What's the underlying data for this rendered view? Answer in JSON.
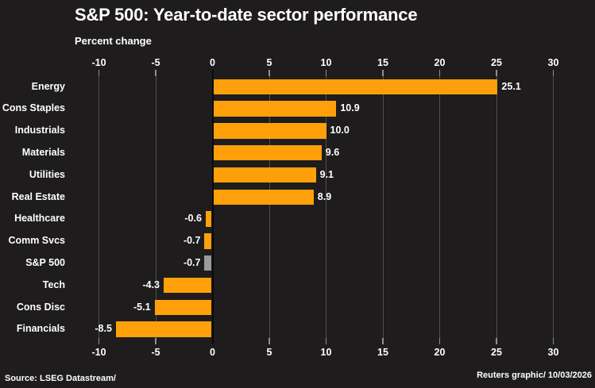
{
  "header": {
    "title": "S&P 500: Year-to-date sector performance",
    "subtitle": "Percent change"
  },
  "footer": {
    "source": "Source: LSEG Datastream/",
    "credit": "Reuters graphic/ 10/03/2026"
  },
  "colors": {
    "background": "#1e1c1c",
    "text": "#ffffff",
    "bar": "#ffa00a",
    "bar_highlight": "#9b9b9b",
    "gridline": "#4f4f4f",
    "tick": "#909090",
    "zero_line": "#0a0a0a"
  },
  "chart_data": {
    "type": "bar",
    "orientation": "horizontal",
    "title": "S&P 500: Year-to-date sector performance",
    "ylabel": "",
    "xlabel": "Percent change",
    "categories": [
      "Energy",
      "Cons Staples",
      "Industrials",
      "Materials",
      "Utilities",
      "Real Estate",
      "Healthcare",
      "Comm Svcs",
      "S&P 500",
      "Tech",
      "Cons Disc",
      "Financials"
    ],
    "values": [
      25.1,
      10.9,
      10.0,
      9.6,
      9.1,
      8.9,
      -0.6,
      -0.7,
      -0.7,
      -4.3,
      -5.1,
      -8.5
    ],
    "highlight_category": "S&P 500",
    "highlight_index": 8,
    "xticks": [
      -10,
      -5,
      0,
      5,
      10,
      15,
      20,
      25,
      30
    ],
    "xlim": [
      -10,
      33.5
    ],
    "grid": true,
    "axis_labels_position": "top and bottom",
    "value_label_decimals": 1
  }
}
